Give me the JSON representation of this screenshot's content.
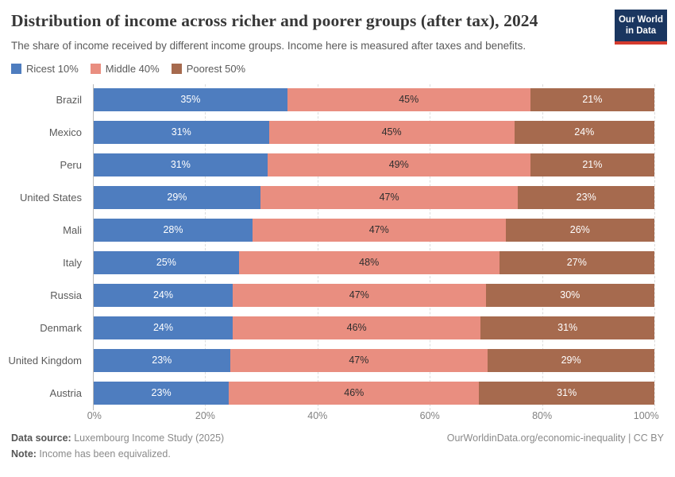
{
  "header": {
    "title": "Distribution of income across richer and poorer groups (after tax), 2024",
    "subtitle": "The share of income received by different income groups. Income here is measured after taxes and benefits.",
    "logo": {
      "line1": "Our World",
      "line2": "in Data"
    }
  },
  "chart_data": {
    "type": "bar",
    "stacked": true,
    "orientation": "horizontal",
    "categories": [
      "Brazil",
      "Mexico",
      "Peru",
      "United States",
      "Mali",
      "Italy",
      "Russia",
      "Denmark",
      "United Kingdom",
      "Austria"
    ],
    "series": [
      {
        "name": "Ricest 10%",
        "color": "#4e7dbf",
        "label_color": "#ffffff",
        "values": [
          35,
          31,
          31,
          29,
          28,
          25,
          24,
          24,
          23,
          23
        ]
      },
      {
        "name": "Middle 40%",
        "color": "#e98e80",
        "label_color": "#2e2e2e",
        "values": [
          45,
          45,
          49,
          47,
          47,
          48,
          47,
          46,
          47,
          46
        ]
      },
      {
        "name": "Poorest 50%",
        "color": "#a66a4e",
        "label_color": "#ffffff",
        "values": [
          21,
          24,
          21,
          23,
          26,
          27,
          30,
          31,
          29,
          31
        ]
      }
    ],
    "value_suffix": "%",
    "x_ticks": [
      "0%",
      "20%",
      "40%",
      "60%",
      "80%",
      "100%"
    ],
    "xlim": [
      0,
      100
    ],
    "grid": "dashed-vertical",
    "legend_position": "top-left"
  },
  "footer": {
    "source_label": "Data source:",
    "source_text": " Luxembourg Income Study (2025)",
    "note_label": "Note:",
    "note_text": " Income has been equivalized.",
    "right_text": "OurWorldinData.org/economic-inequality | CC BY"
  }
}
